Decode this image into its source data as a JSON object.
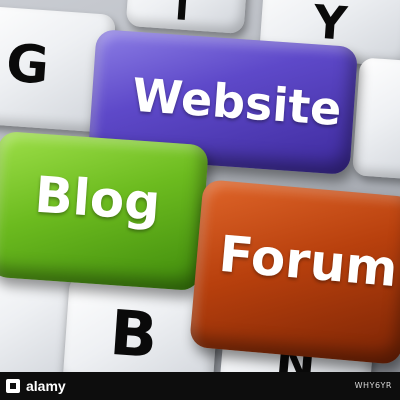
{
  "keys": {
    "website": {
      "label": "Website"
    },
    "blog": {
      "label": "Blog"
    },
    "forum": {
      "label": "Forum"
    }
  },
  "keyboard": {
    "letters": [
      "G",
      "T",
      "Y",
      "B",
      "N"
    ]
  },
  "watermark": {
    "brand": "alamy",
    "image_code": "WHY6YR"
  },
  "colors": {
    "website_key": "#5e49c9",
    "blog_key": "#6cbb1f",
    "forum_key": "#b8400d",
    "footer": "#0d0d0d"
  }
}
